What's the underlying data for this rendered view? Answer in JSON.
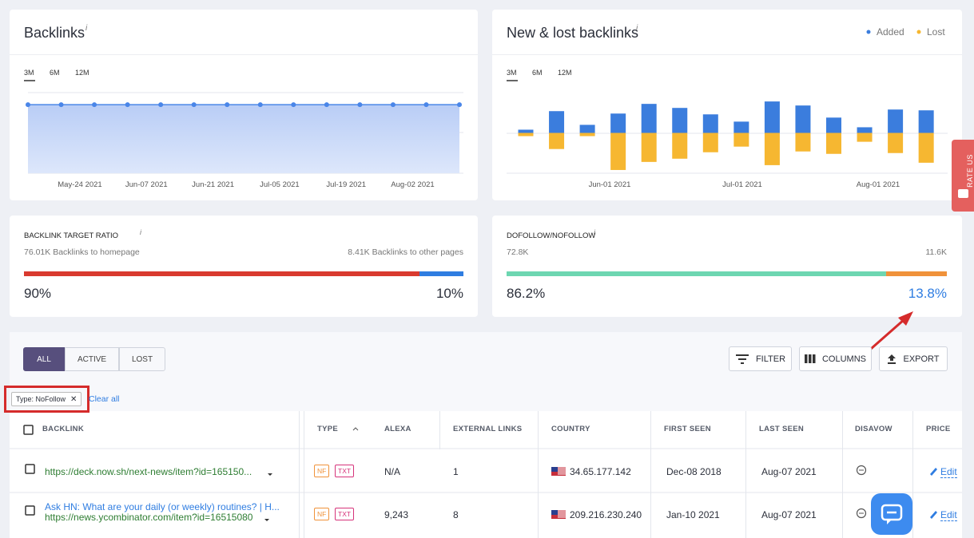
{
  "backlinks_card": {
    "title": "Backlinks",
    "info": "i",
    "periods": [
      "3M",
      "6M",
      "12M"
    ],
    "chart": {
      "type": "line",
      "color": "#4a86e8",
      "values": [
        85000,
        85000,
        85000,
        85000,
        85000,
        85000,
        85000,
        85000,
        85000,
        85000,
        85000,
        85000,
        85000,
        85000
      ],
      "x_labels": [
        "May-24 2021",
        "Jun-07 2021",
        "Jun-21 2021",
        "Jul-05 2021",
        "Jul-19 2021",
        "Aug-02 2021"
      ],
      "ylim": [
        0,
        100000
      ]
    }
  },
  "new_lost_card": {
    "title": "New & lost backlinks",
    "info": "i",
    "periods": [
      "3M",
      "6M",
      "12M"
    ],
    "chart": {
      "type": "bar",
      "series": [
        {
          "name": "Added",
          "color": "#3b7ddd",
          "values": [
            4,
            27,
            10,
            24,
            36,
            31,
            23,
            14,
            39,
            34,
            19,
            7,
            29,
            28
          ]
        },
        {
          "name": "Lost",
          "color": "#f6b731",
          "values": [
            -4,
            -20,
            -4,
            -46,
            -36,
            -32,
            -24,
            -17,
            -40,
            -23,
            -26,
            -11,
            -25,
            -37
          ]
        }
      ],
      "x_labels": [
        "Jun-01 2021",
        "Jul-01 2021",
        "Aug-01 2021"
      ],
      "ylim": [
        -50,
        50
      ]
    }
  },
  "target_ratio": {
    "title": "BACKLINK TARGET RATIO",
    "info": "i",
    "left_caption": "76.01K Backlinks to homepage",
    "right_caption": "8.41K Backlinks to other pages",
    "values": [
      90,
      10
    ],
    "value_labels": [
      "90%",
      "10%"
    ],
    "colors": [
      "#d93a2f",
      "#2f7de1"
    ]
  },
  "follow_ratio": {
    "title": "DOFOLLOW/NOFOLLOW",
    "info": "i",
    "left_caption": "72.8K",
    "right_caption": "11.6K",
    "values": [
      86.2,
      13.8
    ],
    "value_labels": [
      "86.2%",
      "13.8%"
    ],
    "colors": [
      "#6dd6b1",
      "#f0923a"
    ]
  },
  "toolbar": {
    "tabs": [
      "ALL",
      "ACTIVE",
      "LOST"
    ],
    "buttons": [
      "FILTER",
      "COLUMNS",
      "EXPORT"
    ],
    "filter_chip": "Type: NoFollow",
    "clear": "Clear all"
  },
  "table": {
    "headers": [
      "BACKLINK",
      "TYPE",
      "ALEXA",
      "EXTERNAL LINKS",
      "COUNTRY",
      "FIRST SEEN",
      "LAST SEEN",
      "DISAVOW",
      "PRICE"
    ],
    "rows": [
      {
        "title": null,
        "url": "https://deck.now.sh/next-news/item?id=165150...",
        "badges": [
          "NF",
          "TXT"
        ],
        "alexa": "N/A",
        "external_links": 1,
        "ip": "34.65.177.142",
        "first_seen": "Dec-08 2018",
        "last_seen": "Aug-07 2021",
        "price": "Edit"
      },
      {
        "title": "Ask HN: What are your daily (or weekly) routines? | H...",
        "url": "https://news.ycombinator.com/item?id=16515080",
        "badges": [
          "NF",
          "TXT"
        ],
        "alexa": "9,243",
        "external_links": 8,
        "ip": "209.216.230.240",
        "first_seen": "Jan-10 2021",
        "last_seen": "Aug-07 2021",
        "price": "Edit"
      }
    ]
  },
  "rate_us": "RATE US"
}
